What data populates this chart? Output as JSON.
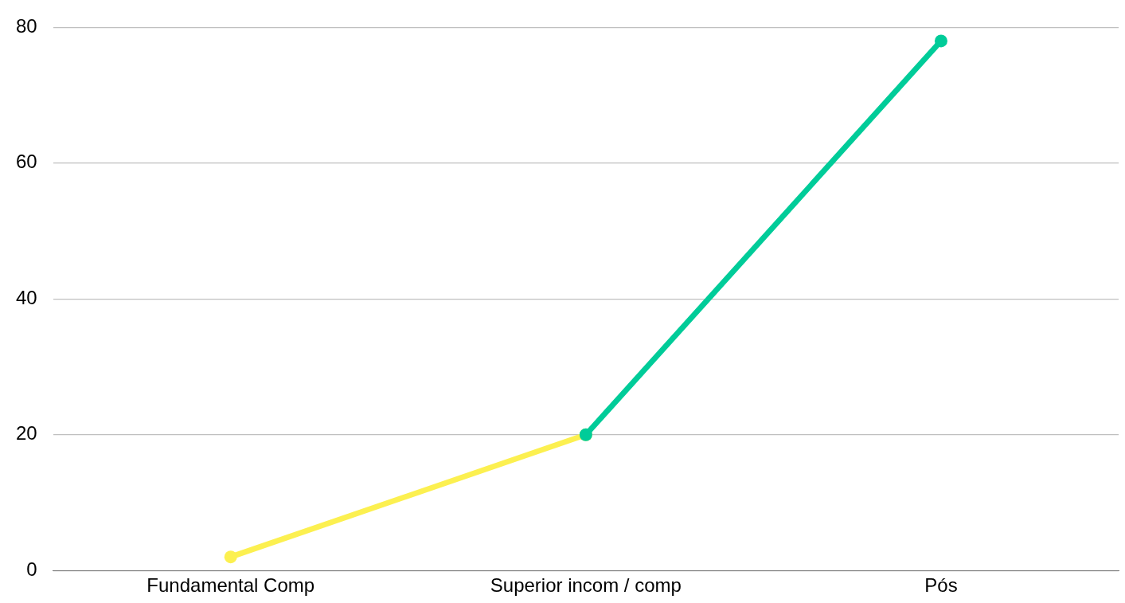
{
  "chart_data": {
    "type": "line",
    "categories": [
      "Fundamental Comp",
      "Superior incom / comp",
      "Pós"
    ],
    "series": [
      {
        "color": "#fcf050",
        "values": [
          2,
          20,
          null
        ]
      },
      {
        "color": "#00cc99",
        "values": [
          null,
          20,
          78
        ]
      }
    ],
    "ylim": [
      0,
      80
    ],
    "yticks": [
      0,
      20,
      40,
      60,
      80
    ],
    "grid": "y",
    "legend": false,
    "marker": "circle",
    "line_style": "solid"
  }
}
